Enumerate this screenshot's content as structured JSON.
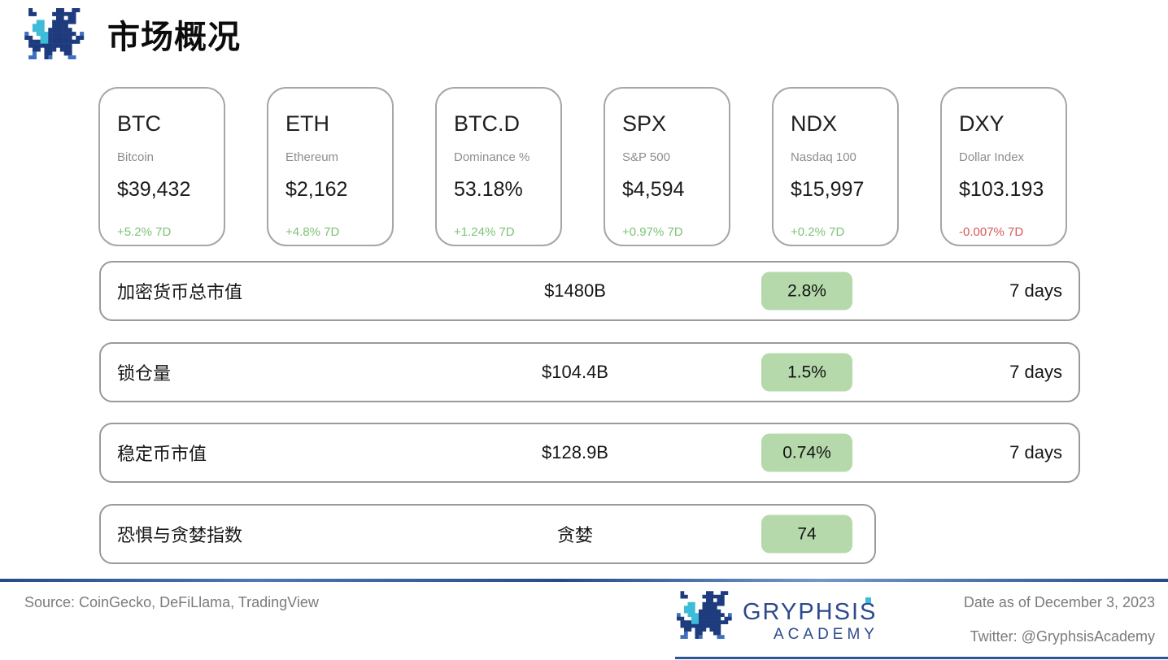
{
  "page": {
    "title": "市场概况"
  },
  "cards": [
    {
      "symbol": "BTC",
      "name": "Bitcoin",
      "value": "$39,432",
      "change": "+5.2% 7D",
      "direction": "up"
    },
    {
      "symbol": "ETH",
      "name": "Ethereum",
      "value": "$2,162",
      "change": "+4.8% 7D",
      "direction": "up"
    },
    {
      "symbol": "BTC.D",
      "name": "Dominance %",
      "value": "53.18%",
      "change": "+1.24% 7D",
      "direction": "up"
    },
    {
      "symbol": "SPX",
      "name": "S&P 500",
      "value": "$4,594",
      "change": "+0.97% 7D",
      "direction": "up"
    },
    {
      "symbol": "NDX",
      "name": "Nasdaq 100",
      "value": "$15,997",
      "change": "+0.2% 7D",
      "direction": "up"
    },
    {
      "symbol": "DXY",
      "name": "Dollar Index",
      "value": "$103.193",
      "change": "-0.007% 7D",
      "direction": "down"
    }
  ],
  "rows": [
    {
      "label": "加密货币总市值",
      "value": "$1480B",
      "badge": "2.8%",
      "period": "7 days"
    },
    {
      "label": "锁仓量",
      "value": "$104.4B",
      "badge": "1.5%",
      "period": "7 days"
    },
    {
      "label": "稳定币市值",
      "value": "$128.9B",
      "badge": "0.74%",
      "period": "7 days"
    },
    {
      "label": "恐惧与贪婪指数",
      "value": "贪婪",
      "badge": "74",
      "period": ""
    }
  ],
  "footer": {
    "source": "Source: CoinGecko, DeFiLlama, TradingView",
    "brand": "GRYPHSIS",
    "brand_sub": "ACADEMY",
    "date": "Date as of December 3, 2023",
    "twitter": "Twitter: @GryphsisAcademy"
  },
  "colors": {
    "positive": "#7cc276",
    "negative": "#d95757",
    "badge_bg": "#b5d9ab",
    "brand_navy": "#2c4a8c",
    "brand_cyan": "#3dbcd9",
    "separator_blue": "#2e5596"
  }
}
